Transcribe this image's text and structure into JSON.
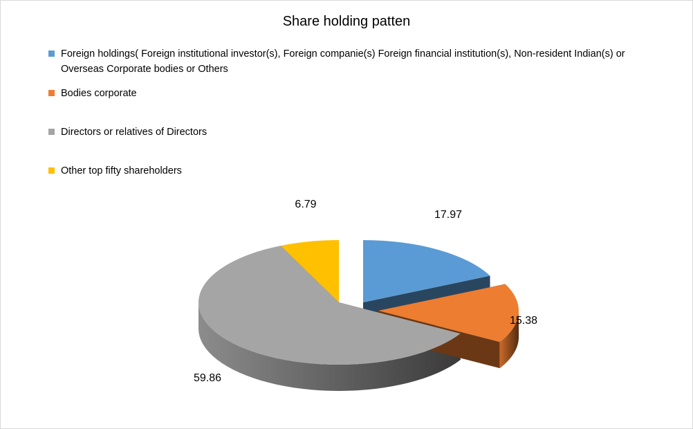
{
  "chart_data": {
    "type": "pie",
    "title": "Share holding patten",
    "legend_position": "top",
    "categories": [
      "Foreign holdings( Foreign institutional investor(s), Foreign companie(s) Foreign financial institution(s),  Non-resident Indian(s) or Overseas Corporate bodies or Others",
      "Bodies corporate",
      "Directors or relatives of Directors",
      "Other top fifty shareholders"
    ],
    "values": [
      17.97,
      15.38,
      59.86,
      6.79
    ],
    "value_labels": [
      "17.97",
      "15.38",
      "59.86",
      "6.79"
    ],
    "colors": [
      "#5b9bd5",
      "#ed7d31",
      "#a5a5a5",
      "#ffc000"
    ]
  }
}
